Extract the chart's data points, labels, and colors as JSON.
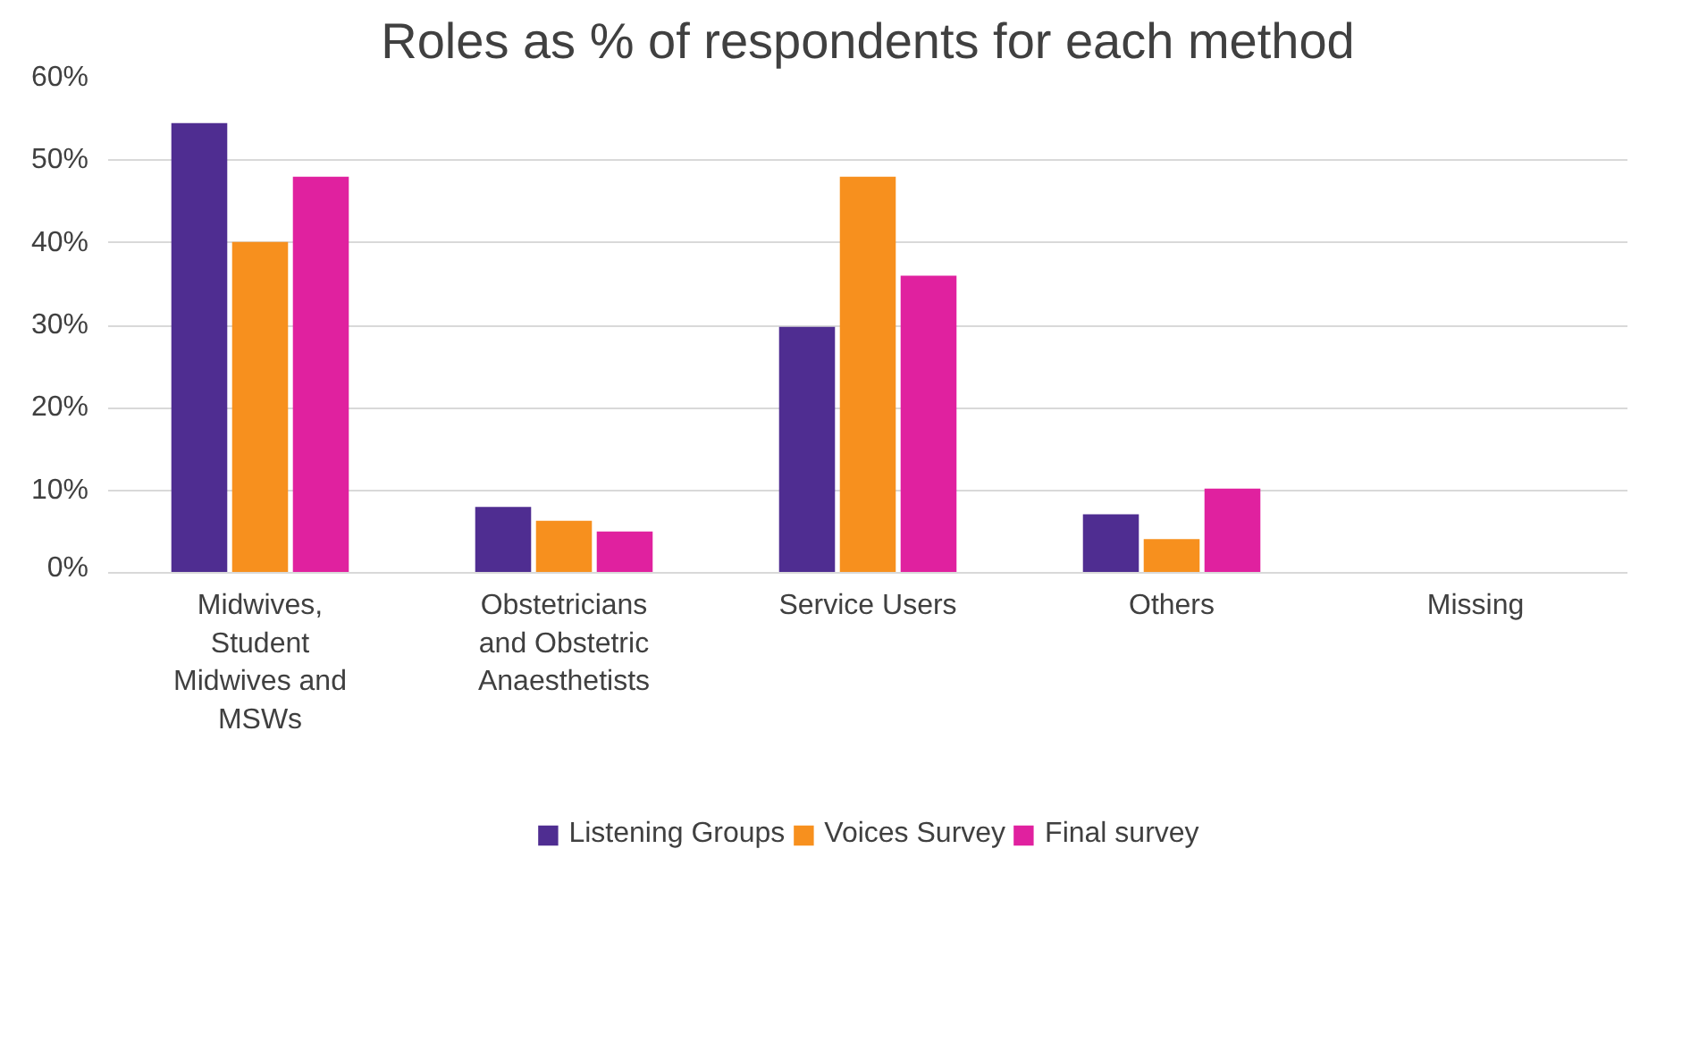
{
  "chart_data": {
    "type": "bar",
    "title": "Roles as % of respondents for each method",
    "categories": [
      "Midwives, Student Midwives and MSWs",
      "Obstetricians and Obstetric Anaesthetists",
      "Service Users",
      "Others",
      "Missing"
    ],
    "series": [
      {
        "name": "Listening Groups",
        "color": "#4f2d91",
        "values": [
          54.5,
          8,
          29.8,
          7.1,
          0
        ]
      },
      {
        "name": "Voices Survey",
        "color": "#f7901e",
        "values": [
          40.1,
          6.3,
          48,
          4.1,
          0
        ]
      },
      {
        "name": "Final survey",
        "color": "#e0219f",
        "values": [
          48,
          5,
          36,
          10.2,
          0
        ]
      }
    ],
    "ylim": [
      0,
      60
    ],
    "yticks": [
      {
        "value": 0,
        "label": "0%"
      },
      {
        "value": 10,
        "label": "10%"
      },
      {
        "value": 20,
        "label": "20%"
      },
      {
        "value": 30,
        "label": "30%"
      },
      {
        "value": 40,
        "label": "40%"
      },
      {
        "value": 50,
        "label": "50%"
      },
      {
        "value": 60,
        "label": "60%"
      }
    ],
    "grid": "y",
    "legend": "bottom"
  }
}
